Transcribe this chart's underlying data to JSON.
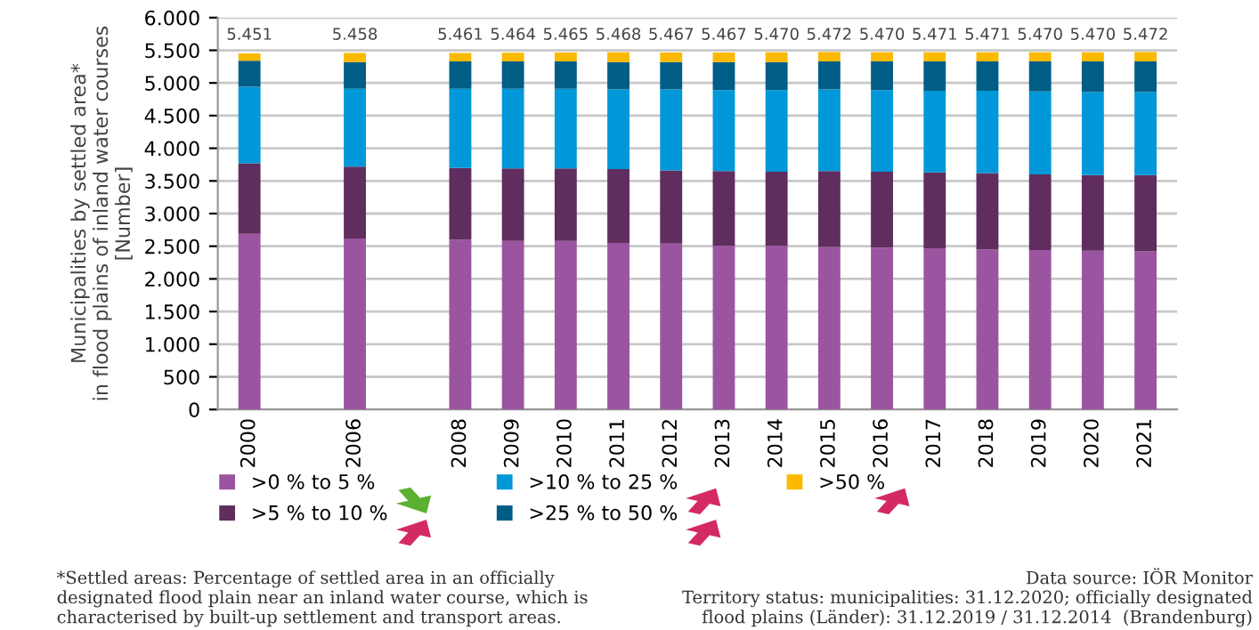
{
  "chart_data": {
    "type": "bar",
    "stacked": true,
    "ylabel": "Municipalities by settled area*\nin flood plains of inland water courses\n[Number]",
    "categories": [
      "2000",
      null,
      "2006",
      null,
      "2008",
      "2009",
      "2010",
      "2011",
      "2012",
      "2013",
      "2014",
      "2015",
      "2016",
      "2017",
      "2018",
      "2019",
      "2020",
      "2021"
    ],
    "series": [
      {
        "name": ">0 % to 5 %",
        "color": "#9b55a0",
        "values": [
          2690,
          null,
          2620,
          null,
          2600,
          2580,
          2580,
          2550,
          2540,
          2510,
          2510,
          2490,
          2480,
          2470,
          2450,
          2440,
          2430,
          2420
        ]
      },
      {
        "name": ">5 % to 10 %",
        "color": "#5f2d5e",
        "values": [
          1080,
          null,
          1100,
          null,
          1100,
          1110,
          1110,
          1130,
          1120,
          1140,
          1130,
          1160,
          1160,
          1160,
          1170,
          1160,
          1160,
          1170
        ]
      },
      {
        "name": ">10 % to 25 %",
        "color": "#0098d8",
        "values": [
          1170,
          null,
          1190,
          null,
          1210,
          1220,
          1220,
          1220,
          1240,
          1240,
          1250,
          1250,
          1250,
          1250,
          1260,
          1270,
          1270,
          1270
        ]
      },
      {
        "name": ">25 % to 50 %",
        "color": "#005e86",
        "values": [
          400,
          null,
          410,
          null,
          420,
          420,
          420,
          420,
          420,
          430,
          430,
          430,
          440,
          450,
          450,
          460,
          470,
          470
        ]
      },
      {
        "name": ">50 %",
        "color": "#fbb900",
        "values": [
          111,
          null,
          138,
          null,
          131,
          134,
          135,
          148,
          147,
          147,
          150,
          142,
          140,
          141,
          141,
          140,
          140,
          142
        ]
      }
    ],
    "totals": [
      "5.451",
      null,
      "5.458",
      null,
      "5.461",
      "5.464",
      "5.465",
      "5.468",
      "5.467",
      "5.467",
      "5.470",
      "5.472",
      "5.470",
      "5.471",
      "5.471",
      "5.470",
      "5.470",
      "5.472"
    ],
    "ylim": [
      0,
      6000
    ],
    "yticks": [
      {
        "value": 0,
        "label": "0"
      },
      {
        "value": 500,
        "label": "500"
      },
      {
        "value": 1000,
        "label": "1.000"
      },
      {
        "value": 1500,
        "label": "1.500"
      },
      {
        "value": 2000,
        "label": "2.000"
      },
      {
        "value": 2500,
        "label": "2.500"
      },
      {
        "value": 3000,
        "label": "3.000"
      },
      {
        "value": 3500,
        "label": "3.500"
      },
      {
        "value": 4000,
        "label": "4.000"
      },
      {
        "value": 4500,
        "label": "4.500"
      },
      {
        "value": 5000,
        "label": "5.000"
      },
      {
        "value": 5500,
        "label": "5.500"
      },
      {
        "value": 6000,
        "label": "6.000"
      }
    ],
    "grid": "y",
    "legend": "bottom",
    "annotations": [
      "*Settled areas: Percentage of settled area in an officially\ndesignated flood plain near an inland water course, which is\ncharacterised by built-up settlement and transport areas.",
      "Data source: IÖR Monitor\nTerritory status: municipalities: 31.12.2020; officially designated\nflood plains (Länder): 31.12.2019 / 31.12.2014  (Brandenburg)"
    ]
  }
}
